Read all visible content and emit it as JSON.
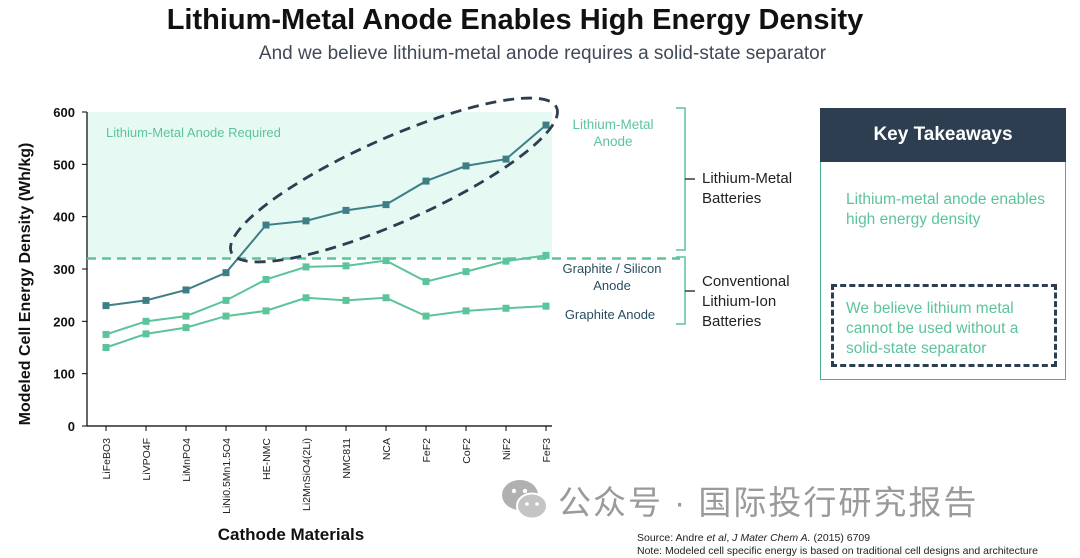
{
  "title": "Lithium-Metal Anode Enables High Energy Density",
  "subtitle": "And we believe lithium-metal anode requires a solid-state separator",
  "chart_data": {
    "type": "line",
    "ylabel": "Modeled Cell Energy Density (Wh/kg)",
    "xlabel": "Cathode Materials",
    "ylim": [
      0,
      600
    ],
    "yticks": [
      0,
      100,
      200,
      300,
      400,
      500,
      600
    ],
    "categories": [
      "LiFeBO3",
      "LiVPO4F",
      "LiMnPO4",
      "LiNi0.5Mn1.5O4",
      "HE-NMC",
      "Li2MnSiO4(2Li)",
      "NMC811",
      "NCA",
      "FeF2",
      "CoF2",
      "NiF2",
      "FeF3"
    ],
    "threshold": 320,
    "region_label": "Lithium-Metal Anode Required",
    "series": [
      {
        "name": "Lithium-Metal Anode",
        "color": "#3e7f86",
        "values": [
          230,
          240,
          260,
          293,
          384,
          392,
          412,
          423,
          468,
          497,
          510,
          575
        ]
      },
      {
        "name": "Graphite / Silicon Anode",
        "color": "#5cc49a",
        "values": [
          175,
          200,
          210,
          240,
          280,
          304,
          306,
          316,
          276,
          295,
          315,
          326
        ]
      },
      {
        "name": "Graphite Anode",
        "color": "#5cc49a",
        "values": [
          150,
          176,
          188,
          210,
          220,
          245,
          240,
          245,
          210,
          220,
          225,
          229
        ]
      }
    ],
    "groups": [
      {
        "label": "Lithium-Metal Batteries"
      },
      {
        "label": "Conventional Lithium-Ion Batteries"
      }
    ]
  },
  "takeaways": {
    "header": "Key Takeaways",
    "point1": "Lithium-metal anode enables high energy density",
    "point2": "We believe lithium metal cannot be used without a solid-state separator"
  },
  "watermark": "公众号 · 国际投行研究报告",
  "source_prefix": "Source: Andre ",
  "source_italic": "et al",
  "source_mid": ", ",
  "source_journal": "J Mater Chem A.",
  "source_suffix": " (2015) 6709",
  "note": "Note: Modeled cell specific energy is based on traditional cell designs and architecture"
}
